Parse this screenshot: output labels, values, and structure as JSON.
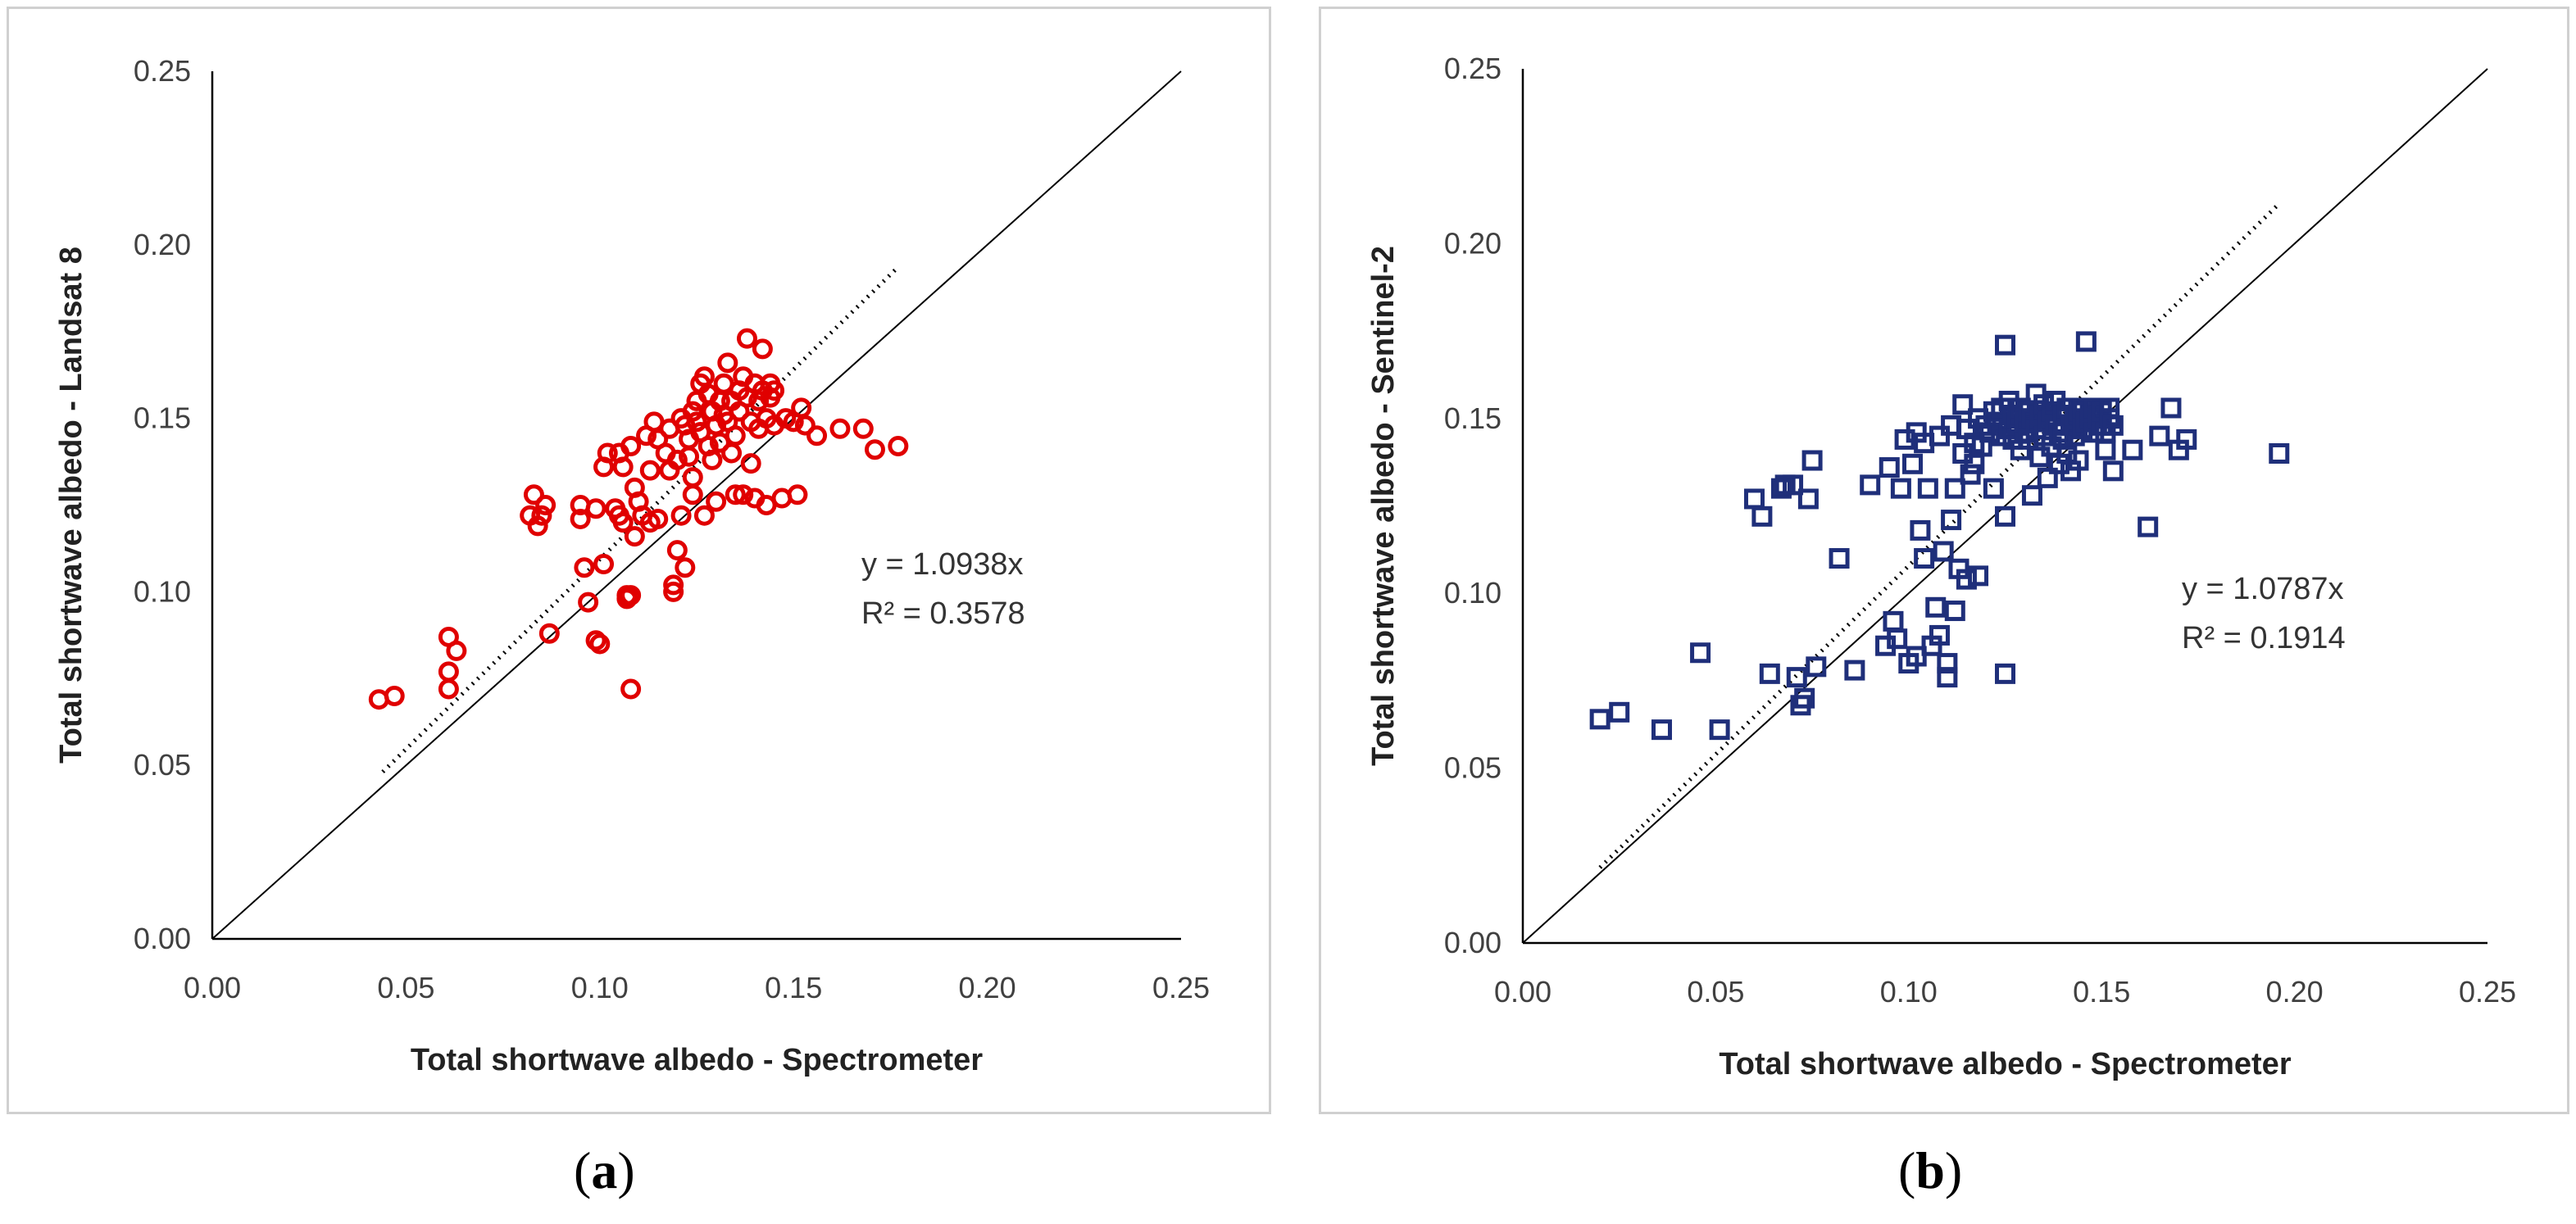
{
  "chart_data": [
    {
      "type": "scatter",
      "panel": "a",
      "caption_open": "(",
      "caption_letter": "a",
      "caption_close": ")",
      "xlabel": "Total shortwave albedo - Spectrometer",
      "ylabel": "Total shortwave albedo - Landsat 8",
      "xlim": [
        0,
        0.25
      ],
      "ylim": [
        0,
        0.25
      ],
      "xticks": [
        "0.00",
        "0.05",
        "0.10",
        "0.15",
        "0.20",
        "0.25"
      ],
      "yticks": [
        "0.00",
        "0.05",
        "0.10",
        "0.15",
        "0.20",
        "0.25"
      ],
      "marker": "circle",
      "color": "#e00000",
      "equation": "y = 1.0938x",
      "r_squared": "R² = 0.3578",
      "trend_slope": 1.0938,
      "trend_x_range": [
        0.044,
        0.177
      ],
      "identity_line_range": [
        0,
        0.25
      ],
      "points": [
        [
          0.043,
          0.069
        ],
        [
          0.047,
          0.07
        ],
        [
          0.061,
          0.087
        ],
        [
          0.061,
          0.077
        ],
        [
          0.061,
          0.072
        ],
        [
          0.063,
          0.083
        ],
        [
          0.082,
          0.122
        ],
        [
          0.083,
          0.128
        ],
        [
          0.084,
          0.119
        ],
        [
          0.085,
          0.122
        ],
        [
          0.086,
          0.125
        ],
        [
          0.087,
          0.088
        ],
        [
          0.095,
          0.121
        ],
        [
          0.095,
          0.125
        ],
        [
          0.096,
          0.107
        ],
        [
          0.097,
          0.097
        ],
        [
          0.099,
          0.124
        ],
        [
          0.099,
          0.086
        ],
        [
          0.1,
          0.085
        ],
        [
          0.101,
          0.136
        ],
        [
          0.101,
          0.108
        ],
        [
          0.102,
          0.14
        ],
        [
          0.104,
          0.124
        ],
        [
          0.105,
          0.122
        ],
        [
          0.105,
          0.14
        ],
        [
          0.106,
          0.136
        ],
        [
          0.106,
          0.12
        ],
        [
          0.107,
          0.099
        ],
        [
          0.107,
          0.098
        ],
        [
          0.108,
          0.072
        ],
        [
          0.108,
          0.142
        ],
        [
          0.108,
          0.099
        ],
        [
          0.109,
          0.13
        ],
        [
          0.109,
          0.116
        ],
        [
          0.11,
          0.126
        ],
        [
          0.111,
          0.122
        ],
        [
          0.112,
          0.145
        ],
        [
          0.113,
          0.12
        ],
        [
          0.113,
          0.135
        ],
        [
          0.114,
          0.149
        ],
        [
          0.115,
          0.121
        ],
        [
          0.115,
          0.144
        ],
        [
          0.117,
          0.14
        ],
        [
          0.118,
          0.147
        ],
        [
          0.118,
          0.135
        ],
        [
          0.119,
          0.1
        ],
        [
          0.119,
          0.102
        ],
        [
          0.12,
          0.112
        ],
        [
          0.12,
          0.138
        ],
        [
          0.121,
          0.15
        ],
        [
          0.121,
          0.122
        ],
        [
          0.122,
          0.148
        ],
        [
          0.122,
          0.107
        ],
        [
          0.123,
          0.139
        ],
        [
          0.123,
          0.144
        ],
        [
          0.124,
          0.152
        ],
        [
          0.124,
          0.128
        ],
        [
          0.124,
          0.133
        ],
        [
          0.125,
          0.149
        ],
        [
          0.125,
          0.155
        ],
        [
          0.126,
          0.16
        ],
        [
          0.126,
          0.146
        ],
        [
          0.127,
          0.162
        ],
        [
          0.127,
          0.122
        ],
        [
          0.128,
          0.157
        ],
        [
          0.128,
          0.142
        ],
        [
          0.129,
          0.152
        ],
        [
          0.129,
          0.138
        ],
        [
          0.13,
          0.126
        ],
        [
          0.13,
          0.148
        ],
        [
          0.131,
          0.155
        ],
        [
          0.131,
          0.143
        ],
        [
          0.132,
          0.16
        ],
        [
          0.132,
          0.151
        ],
        [
          0.133,
          0.166
        ],
        [
          0.133,
          0.149
        ],
        [
          0.134,
          0.14
        ],
        [
          0.134,
          0.155
        ],
        [
          0.135,
          0.128
        ],
        [
          0.135,
          0.145
        ],
        [
          0.136,
          0.158
        ],
        [
          0.136,
          0.152
        ],
        [
          0.137,
          0.162
        ],
        [
          0.137,
          0.128
        ],
        [
          0.138,
          0.173
        ],
        [
          0.138,
          0.156
        ],
        [
          0.139,
          0.149
        ],
        [
          0.139,
          0.137
        ],
        [
          0.14,
          0.127
        ],
        [
          0.14,
          0.16
        ],
        [
          0.141,
          0.155
        ],
        [
          0.141,
          0.147
        ],
        [
          0.142,
          0.17
        ],
        [
          0.142,
          0.158
        ],
        [
          0.143,
          0.125
        ],
        [
          0.143,
          0.15
        ],
        [
          0.144,
          0.156
        ],
        [
          0.144,
          0.16
        ],
        [
          0.145,
          0.148
        ],
        [
          0.145,
          0.158
        ],
        [
          0.147,
          0.127
        ],
        [
          0.148,
          0.15
        ],
        [
          0.15,
          0.149
        ],
        [
          0.151,
          0.128
        ],
        [
          0.152,
          0.153
        ],
        [
          0.153,
          0.148
        ],
        [
          0.156,
          0.145
        ],
        [
          0.162,
          0.147
        ],
        [
          0.168,
          0.147
        ],
        [
          0.171,
          0.141
        ],
        [
          0.177,
          0.142
        ]
      ]
    },
    {
      "type": "scatter",
      "panel": "b",
      "caption_open": "(",
      "caption_letter": "b",
      "caption_close": ")",
      "xlabel": "Total shortwave albedo - Spectrometer",
      "ylabel": "Total shortwave albedo - Sentinel-2",
      "xlim": [
        0,
        0.25
      ],
      "ylim": [
        0,
        0.25
      ],
      "xticks": [
        "0.00",
        "0.05",
        "0.10",
        "0.15",
        "0.20",
        "0.25"
      ],
      "yticks": [
        "0.00",
        "0.05",
        "0.10",
        "0.15",
        "0.20",
        "0.25"
      ],
      "marker": "square",
      "color": "#1f2f7a",
      "equation": "y = 1.0787x",
      "r_squared": "R² = 0.1914",
      "trend_slope": 1.0787,
      "trend_x_range": [
        0.02,
        0.196
      ],
      "identity_line_range": [
        0,
        0.25
      ],
      "points": [
        [
          0.02,
          0.064
        ],
        [
          0.025,
          0.066
        ],
        [
          0.036,
          0.061
        ],
        [
          0.046,
          0.083
        ],
        [
          0.051,
          0.061
        ],
        [
          0.06,
          0.127
        ],
        [
          0.062,
          0.122
        ],
        [
          0.064,
          0.077
        ],
        [
          0.067,
          0.13
        ],
        [
          0.068,
          0.131
        ],
        [
          0.07,
          0.131
        ],
        [
          0.071,
          0.076
        ],
        [
          0.072,
          0.068
        ],
        [
          0.073,
          0.07
        ],
        [
          0.074,
          0.127
        ],
        [
          0.075,
          0.138
        ],
        [
          0.076,
          0.079
        ],
        [
          0.082,
          0.11
        ],
        [
          0.086,
          0.078
        ],
        [
          0.09,
          0.131
        ],
        [
          0.094,
          0.085
        ],
        [
          0.095,
          0.136
        ],
        [
          0.096,
          0.092
        ],
        [
          0.097,
          0.087
        ],
        [
          0.098,
          0.13
        ],
        [
          0.099,
          0.144
        ],
        [
          0.1,
          0.08
        ],
        [
          0.101,
          0.137
        ],
        [
          0.102,
          0.082
        ],
        [
          0.102,
          0.146
        ],
        [
          0.103,
          0.118
        ],
        [
          0.104,
          0.11
        ],
        [
          0.104,
          0.143
        ],
        [
          0.105,
          0.13
        ],
        [
          0.106,
          0.085
        ],
        [
          0.107,
          0.096
        ],
        [
          0.108,
          0.088
        ],
        [
          0.108,
          0.145
        ],
        [
          0.109,
          0.112
        ],
        [
          0.11,
          0.08
        ],
        [
          0.11,
          0.076
        ],
        [
          0.111,
          0.121
        ],
        [
          0.111,
          0.148
        ],
        [
          0.112,
          0.095
        ],
        [
          0.112,
          0.13
        ],
        [
          0.113,
          0.107
        ],
        [
          0.114,
          0.14
        ],
        [
          0.114,
          0.154
        ],
        [
          0.115,
          0.147
        ],
        [
          0.115,
          0.104
        ],
        [
          0.116,
          0.134
        ],
        [
          0.117,
          0.137
        ],
        [
          0.117,
          0.143
        ],
        [
          0.118,
          0.105
        ],
        [
          0.118,
          0.15
        ],
        [
          0.119,
          0.142
        ],
        [
          0.12,
          0.148
        ],
        [
          0.121,
          0.146
        ],
        [
          0.122,
          0.152
        ],
        [
          0.122,
          0.13
        ],
        [
          0.123,
          0.149
        ],
        [
          0.124,
          0.145
        ],
        [
          0.124,
          0.153
        ],
        [
          0.125,
          0.122
        ],
        [
          0.125,
          0.077
        ],
        [
          0.125,
          0.171
        ],
        [
          0.126,
          0.147
        ],
        [
          0.126,
          0.155
        ],
        [
          0.127,
          0.144
        ],
        [
          0.127,
          0.151
        ],
        [
          0.128,
          0.148
        ],
        [
          0.128,
          0.15
        ],
        [
          0.129,
          0.141
        ],
        [
          0.129,
          0.153
        ],
        [
          0.13,
          0.146
        ],
        [
          0.13,
          0.149
        ],
        [
          0.131,
          0.152
        ],
        [
          0.131,
          0.144
        ],
        [
          0.132,
          0.15
        ],
        [
          0.132,
          0.128
        ],
        [
          0.133,
          0.157
        ],
        [
          0.133,
          0.147
        ],
        [
          0.134,
          0.151
        ],
        [
          0.134,
          0.139
        ],
        [
          0.135,
          0.154
        ],
        [
          0.135,
          0.145
        ],
        [
          0.136,
          0.149
        ],
        [
          0.136,
          0.133
        ],
        [
          0.137,
          0.152
        ],
        [
          0.137,
          0.142
        ],
        [
          0.138,
          0.148
        ],
        [
          0.138,
          0.155
        ],
        [
          0.139,
          0.146
        ],
        [
          0.139,
          0.137
        ],
        [
          0.14,
          0.151
        ],
        [
          0.14,
          0.144
        ],
        [
          0.141,
          0.153
        ],
        [
          0.141,
          0.14
        ],
        [
          0.142,
          0.148
        ],
        [
          0.142,
          0.135
        ],
        [
          0.143,
          0.15
        ],
        [
          0.143,
          0.145
        ],
        [
          0.144,
          0.152
        ],
        [
          0.144,
          0.138
        ],
        [
          0.145,
          0.147
        ],
        [
          0.145,
          0.153
        ],
        [
          0.146,
          0.172
        ],
        [
          0.146,
          0.149
        ],
        [
          0.147,
          0.151
        ],
        [
          0.148,
          0.146
        ],
        [
          0.148,
          0.153
        ],
        [
          0.149,
          0.15
        ],
        [
          0.15,
          0.148
        ],
        [
          0.15,
          0.152
        ],
        [
          0.151,
          0.141
        ],
        [
          0.151,
          0.146
        ],
        [
          0.152,
          0.153
        ],
        [
          0.152,
          0.15
        ],
        [
          0.153,
          0.135
        ],
        [
          0.153,
          0.148
        ],
        [
          0.158,
          0.141
        ],
        [
          0.162,
          0.119
        ],
        [
          0.165,
          0.145
        ],
        [
          0.168,
          0.153
        ],
        [
          0.17,
          0.141
        ],
        [
          0.172,
          0.144
        ],
        [
          0.196,
          0.14
        ]
      ]
    }
  ]
}
